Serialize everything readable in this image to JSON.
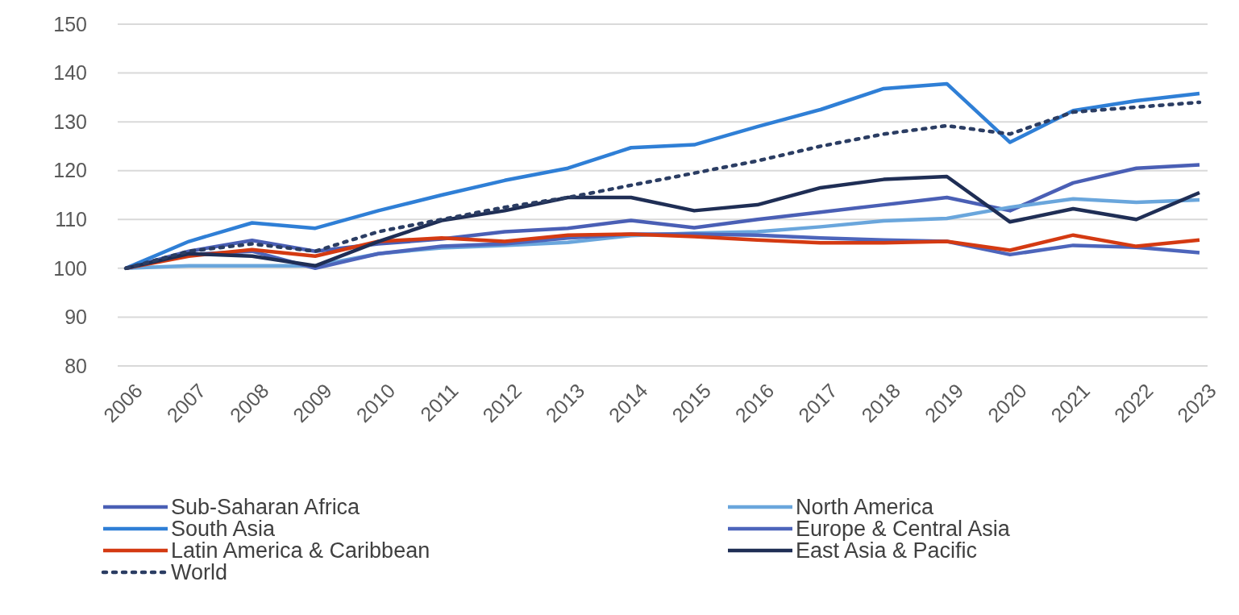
{
  "chart_data": {
    "type": "line",
    "categories": [
      "2006",
      "2007",
      "2008",
      "2009",
      "2010",
      "2011",
      "2012",
      "2013",
      "2014",
      "2015",
      "2016",
      "2017",
      "2018",
      "2019",
      "2020",
      "2021",
      "2022",
      "2023"
    ],
    "ylim": [
      80,
      150
    ],
    "yticks": [
      80,
      90,
      100,
      110,
      120,
      130,
      140,
      150
    ],
    "grid": "y",
    "legend": "bottom",
    "series": [
      {
        "name": "Sub-Saharan Africa",
        "color": "#4a5fb5",
        "values": [
          100,
          103.5,
          105.7,
          103.5,
          105,
          106,
          107.5,
          108.2,
          109.8,
          108.3,
          110,
          111.5,
          113,
          114.5,
          111.8,
          117.5,
          120.5,
          121.2
        ]
      },
      {
        "name": "North America",
        "color": "#6aa6dc",
        "values": [
          100,
          100.5,
          100.5,
          100.5,
          103,
          104.2,
          104.7,
          105.3,
          106.7,
          107.2,
          107.5,
          108.5,
          109.7,
          110.2,
          112.5,
          114.2,
          113.5,
          114
        ]
      },
      {
        "name": "South Asia",
        "color": "#2f7fd6",
        "values": [
          100,
          105.5,
          109.3,
          108.2,
          111.8,
          115,
          118,
          120.5,
          124.7,
          125.3,
          129,
          132.5,
          136.8,
          137.8,
          125.8,
          132.3,
          134.3,
          135.8
        ]
      },
      {
        "name": "Europe & Central Asia",
        "color": "#4d65bb",
        "values": [
          100,
          102.8,
          103.5,
          100,
          103,
          104.5,
          105,
          106.2,
          107,
          107,
          106.8,
          106.2,
          105.8,
          105.5,
          102.8,
          104.7,
          104.3,
          103.2
        ]
      },
      {
        "name": "Latin America & Caribbean",
        "color": "#d43a12",
        "values": [
          100,
          102.5,
          103.8,
          102.5,
          105.5,
          106.2,
          105.5,
          106.8,
          107,
          106.5,
          105.8,
          105.2,
          105.2,
          105.5,
          103.7,
          106.8,
          104.5,
          105.8
        ]
      },
      {
        "name": "East Asia & Pacific",
        "color": "#1f2e55",
        "values": [
          100,
          103,
          102.5,
          100.5,
          105.5,
          109.8,
          111.8,
          114.5,
          114.5,
          111.8,
          113,
          116.5,
          118.2,
          118.8,
          109.5,
          112.2,
          110,
          115.5
        ]
      },
      {
        "name": "World",
        "color": "#2b3d63",
        "line_style": "dotted",
        "values": [
          100,
          103.5,
          105,
          103.5,
          107.5,
          110,
          112.5,
          114.5,
          117,
          119.5,
          122,
          125,
          127.5,
          129.2,
          127.5,
          132,
          133,
          134
        ]
      }
    ]
  }
}
